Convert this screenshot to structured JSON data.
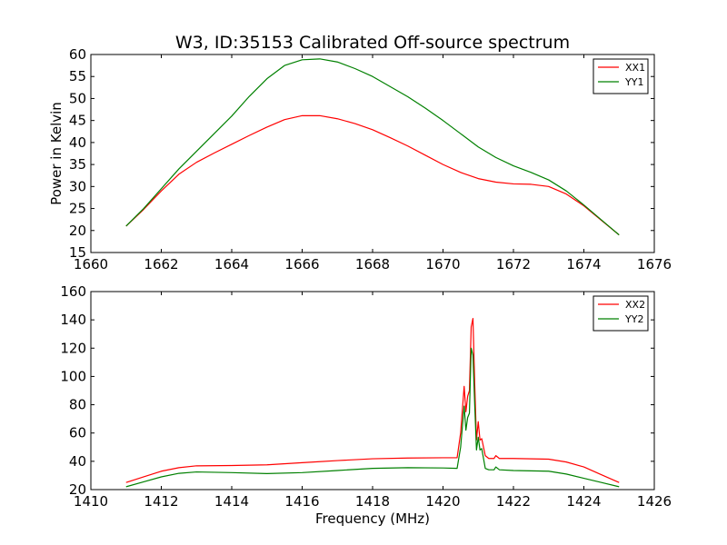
{
  "figure": {
    "title": "W3, ID:35153 Calibrated Off-source spectrum",
    "colors": {
      "red": "#ff0000",
      "green": "#008000"
    }
  },
  "chart_data": [
    {
      "type": "line",
      "title": "W3, ID:35153 Calibrated Off-source spectrum",
      "xlabel": "",
      "ylabel": "Power in Kelvin",
      "xlim": [
        1660,
        1676
      ],
      "ylim": [
        15,
        60
      ],
      "xticks": [
        1660,
        1662,
        1664,
        1666,
        1668,
        1670,
        1672,
        1674,
        1676
      ],
      "yticks": [
        15,
        20,
        25,
        30,
        35,
        40,
        45,
        50,
        55,
        60
      ],
      "grid": false,
      "legend": "top-right",
      "series": [
        {
          "name": "XX1",
          "color": "#ff0000",
          "x": [
            1661.0,
            1661.5,
            1662.0,
            1662.5,
            1663.0,
            1663.5,
            1664.0,
            1664.5,
            1665.0,
            1665.5,
            1666.0,
            1666.5,
            1667.0,
            1667.5,
            1668.0,
            1668.5,
            1669.0,
            1669.5,
            1670.0,
            1670.5,
            1671.0,
            1671.5,
            1672.0,
            1672.5,
            1673.0,
            1673.5,
            1674.0,
            1674.5,
            1675.0
          ],
          "values": [
            21.0,
            24.8,
            29.0,
            32.8,
            35.5,
            37.6,
            39.6,
            41.6,
            43.5,
            45.2,
            46.1,
            46.1,
            45.4,
            44.3,
            42.9,
            41.1,
            39.2,
            37.1,
            35.0,
            33.2,
            31.8,
            31.0,
            30.6,
            30.5,
            30.0,
            28.3,
            25.6,
            22.3,
            19.0
          ]
        },
        {
          "name": "YY1",
          "color": "#008000",
          "x": [
            1661.0,
            1661.5,
            1662.0,
            1662.5,
            1663.0,
            1663.5,
            1664.0,
            1664.5,
            1665.0,
            1665.5,
            1666.0,
            1666.5,
            1667.0,
            1667.5,
            1668.0,
            1668.5,
            1669.0,
            1669.5,
            1670.0,
            1670.5,
            1671.0,
            1671.5,
            1672.0,
            1672.5,
            1673.0,
            1673.5,
            1674.0,
            1674.5,
            1675.0
          ],
          "values": [
            21.0,
            25.0,
            29.5,
            34.0,
            38.0,
            42.0,
            46.0,
            50.5,
            54.5,
            57.5,
            58.8,
            59.0,
            58.3,
            56.8,
            55.0,
            52.7,
            50.4,
            47.8,
            45.0,
            42.0,
            39.0,
            36.6,
            34.7,
            33.2,
            31.5,
            29.0,
            25.8,
            22.4,
            19.0
          ]
        }
      ]
    },
    {
      "type": "line",
      "title": "",
      "xlabel": "Frequency (MHz)",
      "ylabel": "",
      "xlim": [
        1410,
        1426
      ],
      "ylim": [
        20,
        160
      ],
      "xticks": [
        1410,
        1412,
        1414,
        1416,
        1418,
        1420,
        1422,
        1424,
        1426
      ],
      "yticks": [
        20,
        40,
        60,
        80,
        100,
        120,
        140,
        160
      ],
      "grid": false,
      "legend": "top-right",
      "series": [
        {
          "name": "XX2",
          "color": "#ff0000",
          "x": [
            1411.0,
            1411.5,
            1412.0,
            1412.5,
            1413.0,
            1414.0,
            1415.0,
            1416.0,
            1417.0,
            1418.0,
            1419.0,
            1420.0,
            1420.4,
            1420.5,
            1420.6,
            1420.65,
            1420.7,
            1420.75,
            1420.8,
            1420.85,
            1420.9,
            1420.95,
            1421.0,
            1421.05,
            1421.1,
            1421.2,
            1421.3,
            1421.45,
            1421.5,
            1421.6,
            1422.0,
            1423.0,
            1423.5,
            1424.0,
            1424.5,
            1425.0
          ],
          "values": [
            25.0,
            29.0,
            33.0,
            35.5,
            36.8,
            37.0,
            37.5,
            39.0,
            40.5,
            41.8,
            42.3,
            42.5,
            42.5,
            60.0,
            93.0,
            75.0,
            86.0,
            90.0,
            135.0,
            141.0,
            95.0,
            55.0,
            68.0,
            55.0,
            56.0,
            44.0,
            42.0,
            42.0,
            44.0,
            42.0,
            42.0,
            41.5,
            39.5,
            36.0,
            30.5,
            25.0
          ]
        },
        {
          "name": "YY2",
          "color": "#008000",
          "x": [
            1411.0,
            1411.5,
            1412.0,
            1412.5,
            1413.0,
            1414.0,
            1415.0,
            1416.0,
            1417.0,
            1418.0,
            1419.0,
            1420.0,
            1420.4,
            1420.5,
            1420.6,
            1420.65,
            1420.7,
            1420.75,
            1420.8,
            1420.85,
            1420.9,
            1420.95,
            1421.0,
            1421.05,
            1421.1,
            1421.2,
            1421.3,
            1421.45,
            1421.5,
            1421.6,
            1422.0,
            1423.0,
            1423.5,
            1424.0,
            1424.5,
            1425.0
          ],
          "values": [
            22.0,
            25.5,
            29.0,
            31.5,
            32.5,
            32.0,
            31.3,
            32.0,
            33.5,
            35.0,
            35.5,
            35.3,
            35.0,
            50.0,
            79.0,
            62.0,
            71.0,
            74.0,
            120.0,
            115.0,
            80.0,
            48.0,
            57.0,
            48.0,
            49.0,
            35.0,
            34.0,
            34.0,
            36.0,
            34.0,
            33.5,
            33.0,
            31.0,
            28.0,
            25.0,
            22.0
          ]
        }
      ]
    }
  ]
}
